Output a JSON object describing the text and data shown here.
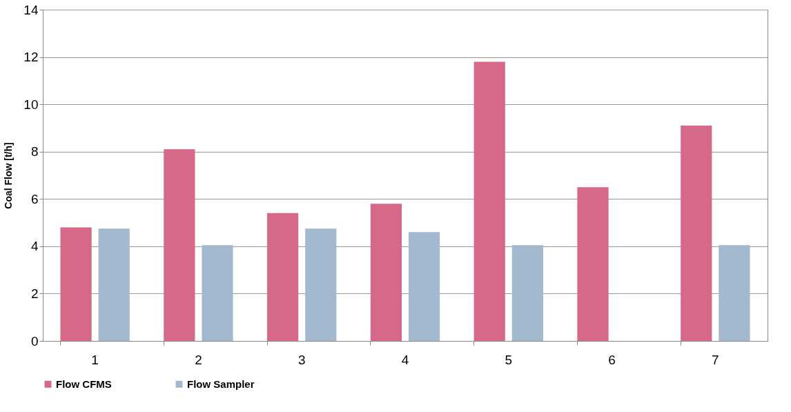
{
  "chart_data": {
    "type": "bar",
    "ylabel": "Coal Flow [t/h]",
    "categories": [
      "1",
      "2",
      "3",
      "4",
      "5",
      "6",
      "7"
    ],
    "series": [
      {
        "name": "Flow CFMS",
        "color": "#d6698a",
        "values": [
          4.8,
          8.1,
          5.4,
          5.8,
          11.8,
          6.5,
          9.1
        ]
      },
      {
        "name": "Flow Sampler",
        "color": "#a3b9d0",
        "values": [
          4.75,
          4.05,
          4.75,
          4.6,
          4.05,
          null,
          4.05
        ]
      }
    ],
    "ylim": [
      0,
      14
    ],
    "yticks": [
      0,
      2,
      4,
      6,
      8,
      10,
      12,
      14
    ],
    "grid": "y",
    "legend": "bottom"
  }
}
